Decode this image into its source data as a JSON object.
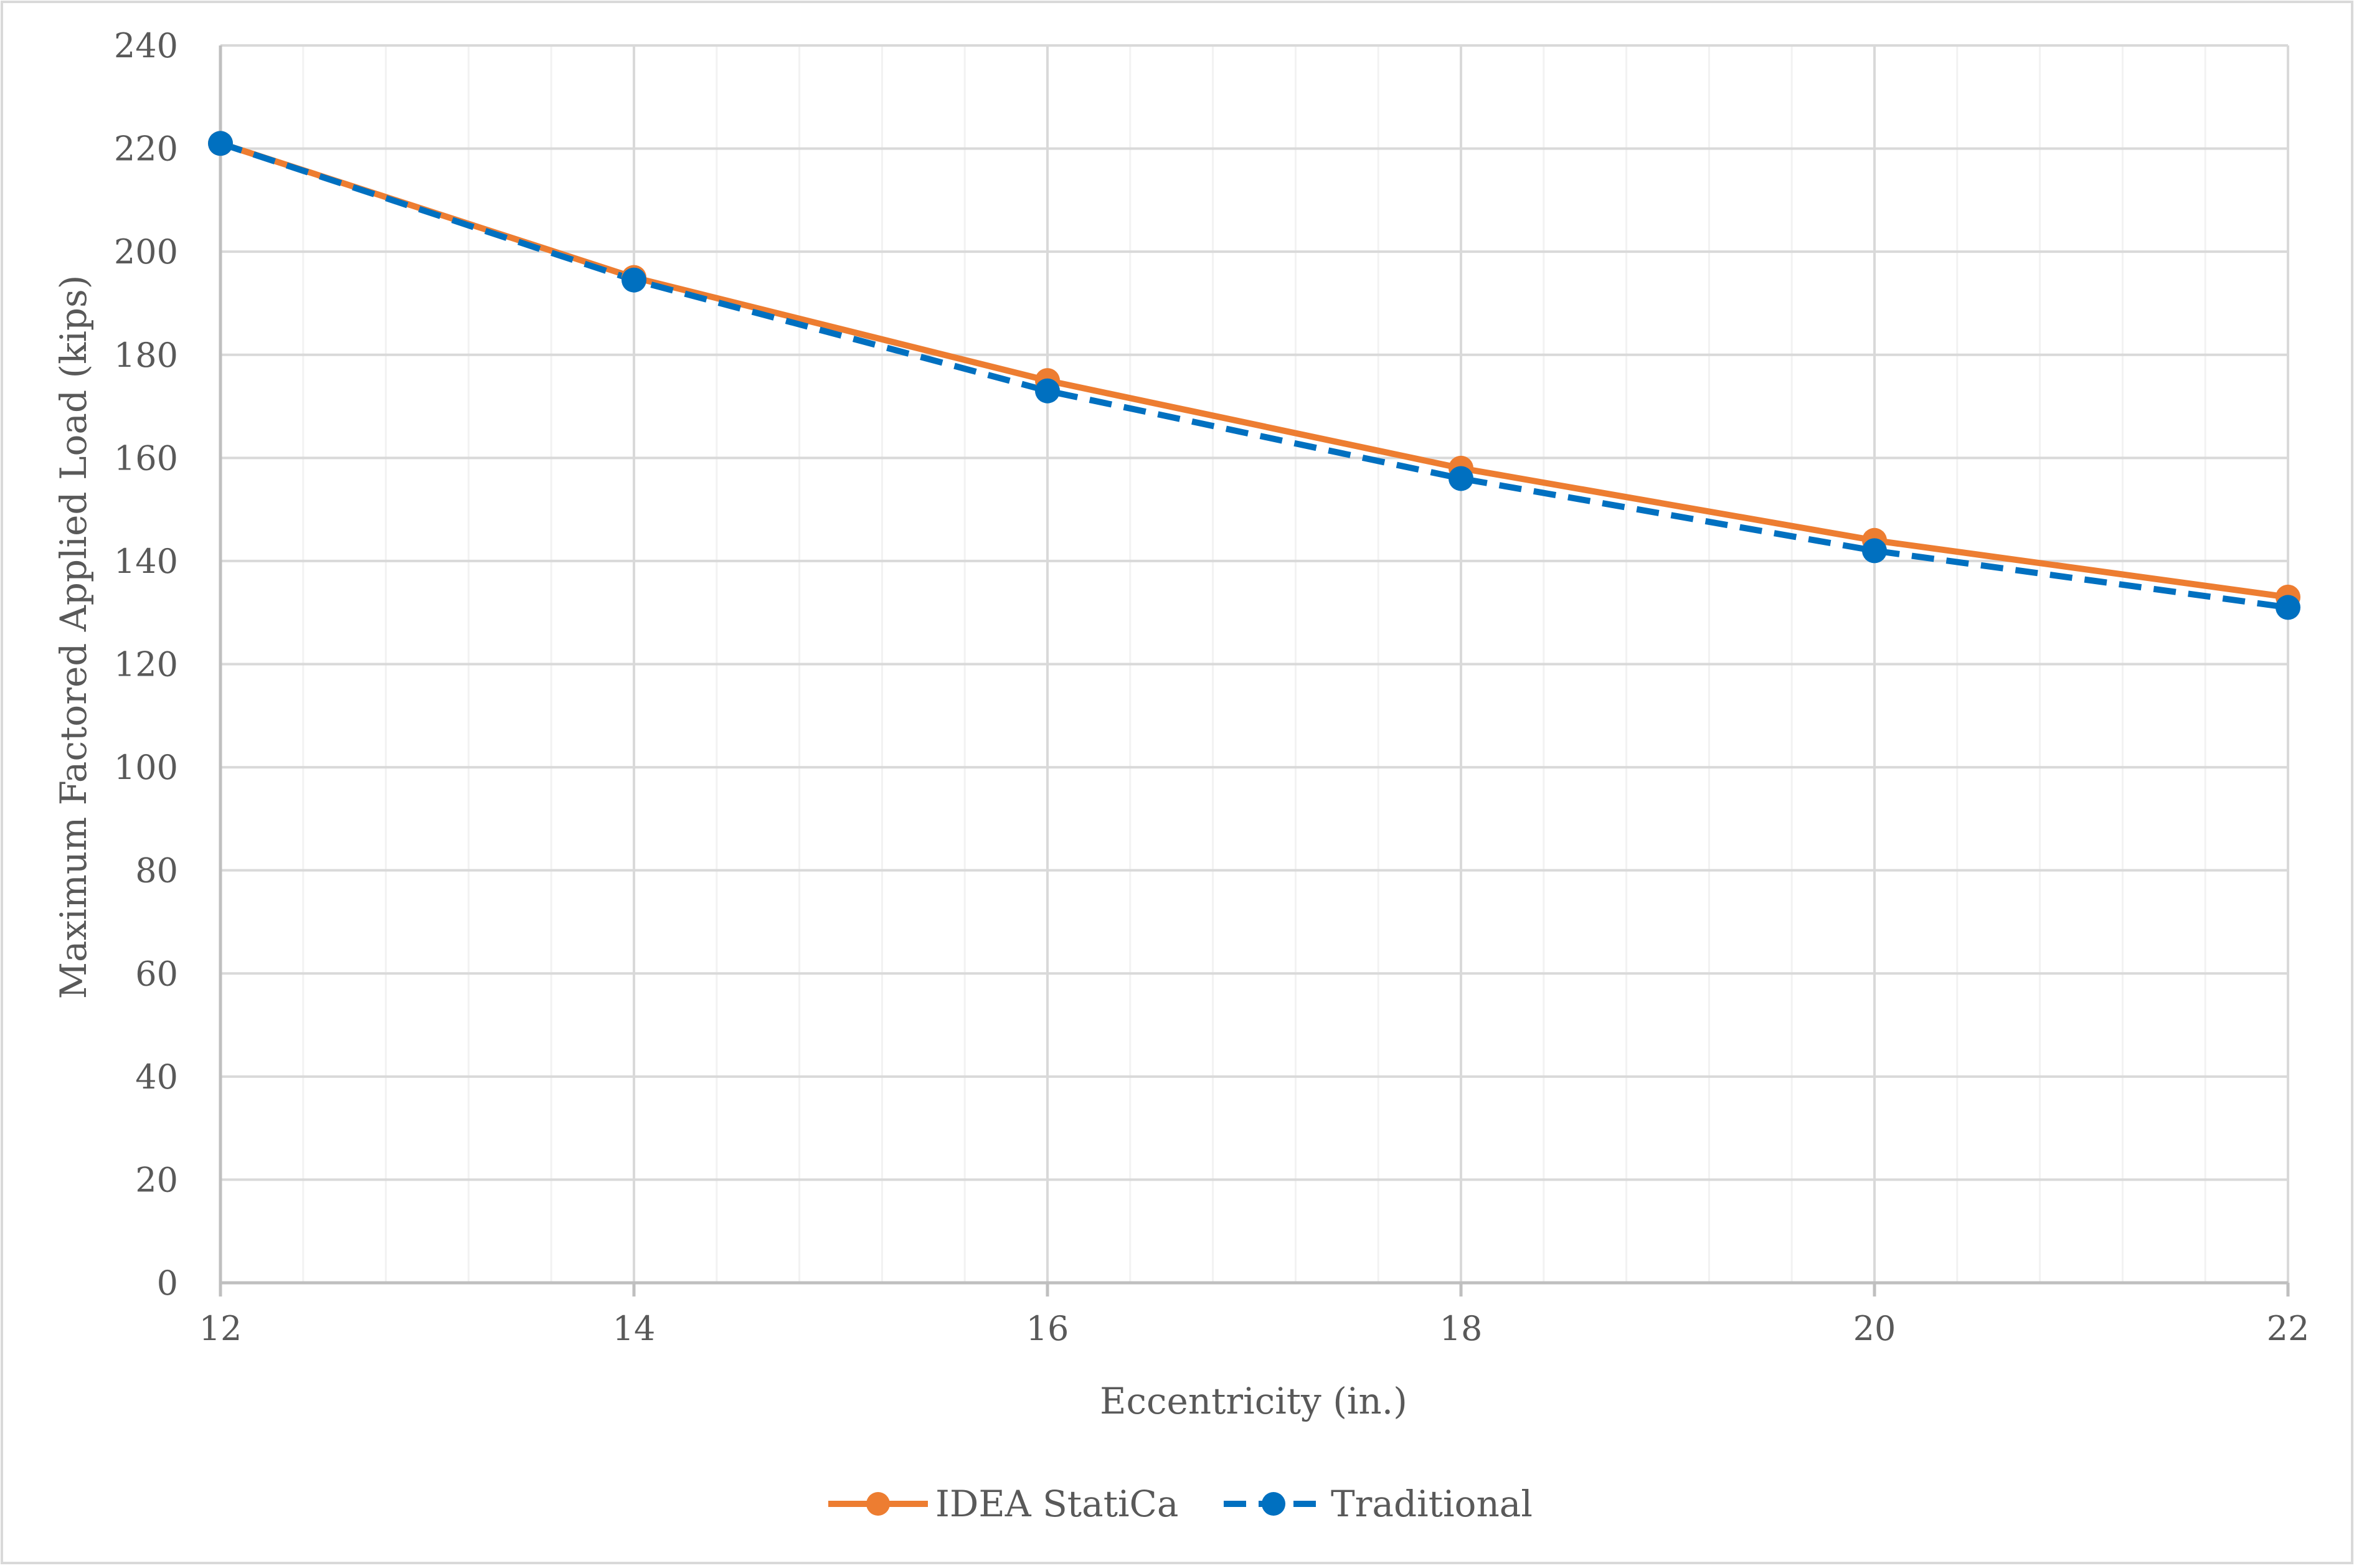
{
  "chart_data": {
    "type": "line",
    "title": "",
    "xlabel": "Eccentricity (in.)",
    "ylabel": "Maximum Factored Applied Load (kips)",
    "x": [
      12,
      14,
      16,
      18,
      20,
      22
    ],
    "xlim": [
      12,
      22
    ],
    "ylim": [
      0,
      240
    ],
    "xticks": [
      12,
      14,
      16,
      18,
      20,
      22
    ],
    "yticks": [
      0,
      20,
      40,
      60,
      80,
      100,
      120,
      140,
      160,
      180,
      200,
      220,
      240
    ],
    "x_minor_step": 0.4,
    "grid": true,
    "legend_position": "bottom",
    "series": [
      {
        "name": "IDEA StatiCa",
        "values": [
          221,
          195,
          175,
          158,
          144,
          133
        ],
        "color": "#ED7D31",
        "line_style": "solid",
        "marker": "circle"
      },
      {
        "name": "Traditional",
        "values": [
          221,
          194.5,
          173,
          156,
          142,
          131
        ],
        "color": "#0070C0",
        "line_style": "dashed",
        "marker": "circle"
      }
    ]
  }
}
